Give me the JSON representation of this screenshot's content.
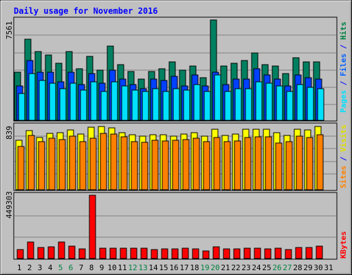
{
  "chart_data": [
    {
      "type": "bar",
      "title": "Daily usage for November 2016",
      "y_label_max": "7561",
      "legend": [
        "Pages",
        "Files",
        "Hits"
      ],
      "legend_colors": {
        "Pages": "#00e0ff",
        "Files": "#0060ff",
        "Hits": "#008040",
        "separator": "#0000ff"
      },
      "x": [
        "1",
        "2",
        "3",
        "4",
        "5",
        "6",
        "7",
        "8",
        "9",
        "10",
        "11",
        "12",
        "13",
        "14",
        "15",
        "16",
        "17",
        "18",
        "19",
        "20",
        "21",
        "22",
        "23",
        "24",
        "25",
        "26",
        "27",
        "28",
        "29",
        "30",
        "31"
      ],
      "weekend_days": [
        "5",
        "6",
        "12",
        "13",
        "19",
        "20",
        "26",
        "27"
      ],
      "ylim": [
        0,
        7561
      ],
      "series": [
        {
          "name": "Hits",
          "color": "#008060",
          "values": [
            3600,
            6100,
            5200,
            4900,
            4300,
            5200,
            3900,
            4800,
            3800,
            5600,
            4200,
            3700,
            3100,
            3700,
            3900,
            4400,
            3800,
            4100,
            3200,
            7561,
            4100,
            4300,
            4500,
            5100,
            4200,
            4100,
            3500,
            4700,
            4400,
            4400,
            null
          ]
        },
        {
          "name": "Files",
          "color": "#0040ff",
          "values": [
            2600,
            4500,
            3600,
            3600,
            2900,
            3600,
            2700,
            3500,
            2800,
            3800,
            3100,
            2700,
            2400,
            3100,
            3000,
            3300,
            2600,
            3400,
            2600,
            3600,
            2700,
            3100,
            3100,
            3900,
            3400,
            3100,
            2600,
            3400,
            3200,
            3100,
            null
          ]
        },
        {
          "name": "Pages",
          "color": "#00e0ff",
          "values": [
            2000,
            3500,
            3000,
            2800,
            2400,
            2800,
            2300,
            2900,
            2200,
            2900,
            2600,
            2300,
            2200,
            2400,
            2200,
            2400,
            2300,
            2700,
            2200,
            3400,
            2200,
            2400,
            2400,
            2900,
            2800,
            2600,
            2200,
            2700,
            2500,
            2400,
            null
          ]
        }
      ]
    },
    {
      "type": "bar",
      "y_label_max": "839",
      "legend": [
        "Sites",
        "Visits"
      ],
      "legend_colors": {
        "Sites": "#ff8000",
        "Visits": "#ffff00",
        "separator": "#0000ff"
      },
      "x": [
        "1",
        "2",
        "3",
        "4",
        "5",
        "6",
        "7",
        "8",
        "9",
        "10",
        "11",
        "12",
        "13",
        "14",
        "15",
        "16",
        "17",
        "18",
        "19",
        "20",
        "21",
        "22",
        "23",
        "24",
        "25",
        "26",
        "27",
        "28",
        "29",
        "30",
        "31"
      ],
      "ylim": [
        0,
        839
      ],
      "series": [
        {
          "name": "Visits",
          "color": "#ffff00",
          "values": [
            660,
            780,
            690,
            750,
            760,
            790,
            740,
            830,
            839,
            820,
            760,
            730,
            710,
            730,
            730,
            710,
            740,
            760,
            710,
            800,
            720,
            740,
            800,
            800,
            800,
            760,
            720,
            800,
            790,
            839,
            null
          ]
        },
        {
          "name": "Sites",
          "color": "#ff8000",
          "values": [
            570,
            720,
            640,
            680,
            670,
            710,
            640,
            680,
            750,
            740,
            700,
            640,
            630,
            660,
            650,
            660,
            670,
            680,
            640,
            690,
            640,
            650,
            690,
            700,
            700,
            620,
            640,
            710,
            690,
            730,
            null
          ]
        }
      ]
    },
    {
      "type": "bar",
      "y_label_max": "449303",
      "legend": [
        "KBytes"
      ],
      "legend_colors": {
        "KBytes": "#ff0000"
      },
      "x": [
        "1",
        "2",
        "3",
        "4",
        "5",
        "6",
        "7",
        "8",
        "9",
        "10",
        "11",
        "12",
        "13",
        "14",
        "15",
        "16",
        "17",
        "18",
        "19",
        "20",
        "21",
        "22",
        "23",
        "24",
        "25",
        "26",
        "27",
        "28",
        "29",
        "30",
        "31"
      ],
      "ylim": [
        0,
        449303
      ],
      "series": [
        {
          "name": "KBytes",
          "color": "#ff0000",
          "values": [
            64000,
            115000,
            80000,
            85000,
            115000,
            90000,
            66000,
            449303,
            75000,
            75000,
            75000,
            75000,
            75000,
            62000,
            66000,
            66000,
            74000,
            66000,
            52000,
            85000,
            69000,
            66000,
            74000,
            74000,
            66000,
            74000,
            62000,
            80000,
            80000,
            88000,
            null
          ]
        }
      ]
    }
  ]
}
